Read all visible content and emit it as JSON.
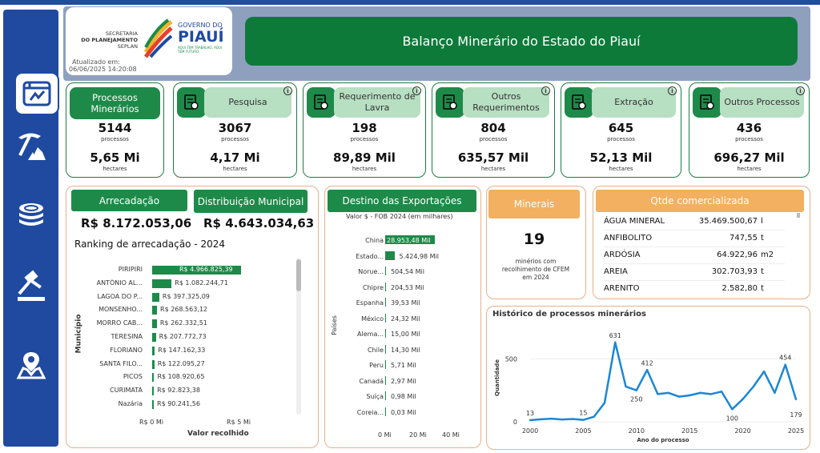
{
  "header": {
    "secretaria": "SECRETARIA",
    "do_planejamento": "DO PLANEJAMENTO",
    "seplan": "SEPLAN",
    "governo": "GOVERNO DO",
    "piaui": "PIAUÍ",
    "slogan": "AQUI TEM TRABALHO, AQUI TEM FUTURO.",
    "updated_label": "Atualizado em:",
    "updated_value": "06/06/2025 14:20:08",
    "title": "Balanço Minerário do Estado do Piauí"
  },
  "sidebar": {
    "items": [
      {
        "icon": "dashboard-icon",
        "active": true
      },
      {
        "icon": "mining-pick-icon",
        "active": false
      },
      {
        "icon": "coins-icon",
        "active": false
      },
      {
        "icon": "gavel-icon",
        "active": false
      },
      {
        "icon": "map-pin-icon",
        "active": false
      }
    ]
  },
  "cards": [
    {
      "label": "Processos Minerários",
      "count": "5144",
      "count_unit": "processos",
      "area": "5,65 Mi",
      "area_unit": "hectares",
      "icon": "",
      "info": false
    },
    {
      "label": "Pesquisa",
      "count": "3067",
      "count_unit": "processos",
      "area": "4,17 Mi",
      "area_unit": "hectares",
      "icon": "research-icon",
      "info": true
    },
    {
      "label": "Requerimento de Lavra",
      "count": "198",
      "count_unit": "processos",
      "area": "89,89 Mil",
      "area_unit": "hectares",
      "icon": "document-pen-icon",
      "info": true
    },
    {
      "label": "Outros Requerimentos",
      "count": "804",
      "count_unit": "processos",
      "area": "635,57 Mil",
      "area_unit": "hectares",
      "icon": "document-edit-icon",
      "info": true
    },
    {
      "label": "Extração",
      "count": "645",
      "count_unit": "processos",
      "area": "52,13 Mil",
      "area_unit": "hectares",
      "icon": "excavator-icon",
      "info": true
    },
    {
      "label": "Outros Processos",
      "count": "436",
      "count_unit": "processos",
      "area": "696,27 Mil",
      "area_unit": "hectares",
      "icon": "gears-icon",
      "info": true
    }
  ],
  "arrecadacao": {
    "label": "Arrecadação",
    "value": "R$ 8.172.053,06",
    "dist_label": "Distribuição Municipal",
    "dist_value": "R$ 4.643.034,63",
    "ranking_title": "Ranking de arrecadação - 2024",
    "ylabel": "Município",
    "xlabel": "Valor recolhido",
    "xticks": [
      "R$ 0 Mi",
      "R$ 5 Mi"
    ],
    "rows": [
      {
        "name": "PIRIPIRI",
        "value": 4966825.39,
        "label": "R$ 4.966.825,39"
      },
      {
        "name": "ANTÔNIO AL...",
        "value": 1082244.71,
        "label": "R$ 1.082.244,71"
      },
      {
        "name": "LAGOA DO P...",
        "value": 397325.09,
        "label": "R$ 397.325,09"
      },
      {
        "name": "MONSENHO...",
        "value": 268563.12,
        "label": "R$ 268.563,12"
      },
      {
        "name": "MORRO CAB...",
        "value": 262332.51,
        "label": "R$ 262.332,51"
      },
      {
        "name": "TERESINA",
        "value": 207772.73,
        "label": "R$ 207.772,73"
      },
      {
        "name": "FLORIANO",
        "value": 147162.33,
        "label": "R$ 147.162,33"
      },
      {
        "name": "SANTA FILO...",
        "value": 122095.27,
        "label": "R$ 122.095,27"
      },
      {
        "name": "PICOS",
        "value": 108920.65,
        "label": "R$ 108.920,65"
      },
      {
        "name": "CURIMATÁ",
        "value": 92823.38,
        "label": "R$ 92.823,38"
      },
      {
        "name": "Nazária",
        "value": 90241.56,
        "label": "R$ 90.241,56"
      }
    ]
  },
  "exportacoes": {
    "title": "Destino das Exportações",
    "subtitle": "Valor $ - FOB 2024 (em milhares)",
    "ylabel": "Países",
    "xticks": [
      "0 Mi",
      "20 Mi",
      "40 Mi"
    ],
    "rows": [
      {
        "name": "China",
        "value": 28953.48,
        "label": "28.953,48 Mil"
      },
      {
        "name": "Estado...",
        "value": 5424.98,
        "label": "5.424,98 Mil"
      },
      {
        "name": "Norue...",
        "value": 504.54,
        "label": "504,54 Mil"
      },
      {
        "name": "Chipre",
        "value": 204.53,
        "label": "204,53 Mil"
      },
      {
        "name": "Espanha",
        "value": 39.53,
        "label": "39,53 Mil"
      },
      {
        "name": "México",
        "value": 24.32,
        "label": "24,32 Mil"
      },
      {
        "name": "Alema...",
        "value": 15.0,
        "label": "15,00 Mil"
      },
      {
        "name": "Chile",
        "value": 14.3,
        "label": "14,30 Mil"
      },
      {
        "name": "Peru",
        "value": 5.71,
        "label": "5,71 Mil"
      },
      {
        "name": "Canadá",
        "value": 2.97,
        "label": "2,97 Mil"
      },
      {
        "name": "Suíça",
        "value": 0.98,
        "label": "0,98 Mil"
      },
      {
        "name": "Coreia...",
        "value": 0.03,
        "label": "0,03 Mil"
      }
    ]
  },
  "minerais": {
    "label": "Minerais",
    "value": "19",
    "desc": "minérios com recolhimento de CFEM em 2024"
  },
  "comercializada": {
    "title": "Qtde comercializada",
    "rows": [
      {
        "name": "ÁGUA MINERAL",
        "value": "35.469.500,67",
        "unit": "l"
      },
      {
        "name": "ANFIBOLITO",
        "value": "747,55",
        "unit": "t"
      },
      {
        "name": "ARDÓSIA",
        "value": "64.922,96",
        "unit": "m2"
      },
      {
        "name": "AREIA",
        "value": "302.703,93",
        "unit": "t"
      },
      {
        "name": "ARENITO",
        "value": "2.582,80",
        "unit": "t"
      }
    ]
  },
  "chart_data": {
    "type": "line",
    "title": "Histórico de processos minerários",
    "xlabel": "Ano do processo",
    "ylabel": "Quantidade",
    "xlim": [
      2000,
      2025
    ],
    "ylim": [
      0,
      700
    ],
    "xticks": [
      "2000",
      "2005",
      "2010",
      "2015",
      "2020",
      "2025"
    ],
    "yticks": [
      "0",
      "500"
    ],
    "x": [
      2000,
      2001,
      2002,
      2003,
      2004,
      2005,
      2006,
      2007,
      2008,
      2009,
      2010,
      2011,
      2012,
      2013,
      2014,
      2015,
      2016,
      2017,
      2018,
      2019,
      2020,
      2021,
      2022,
      2023,
      2024,
      2025
    ],
    "values": [
      13,
      20,
      25,
      18,
      22,
      15,
      40,
      150,
      631,
      280,
      250,
      412,
      220,
      230,
      200,
      210,
      230,
      220,
      240,
      100,
      180,
      280,
      400,
      230,
      454,
      179
    ],
    "point_labels": [
      {
        "x": 2000,
        "label": "13"
      },
      {
        "x": 2005,
        "label": "15"
      },
      {
        "x": 2008,
        "label": "631"
      },
      {
        "x": 2010,
        "label": "250"
      },
      {
        "x": 2011,
        "label": "412"
      },
      {
        "x": 2019,
        "label": "100"
      },
      {
        "x": 2024,
        "label": "454"
      },
      {
        "x": 2025,
        "label": "179"
      }
    ],
    "color": "#1a87d6"
  }
}
